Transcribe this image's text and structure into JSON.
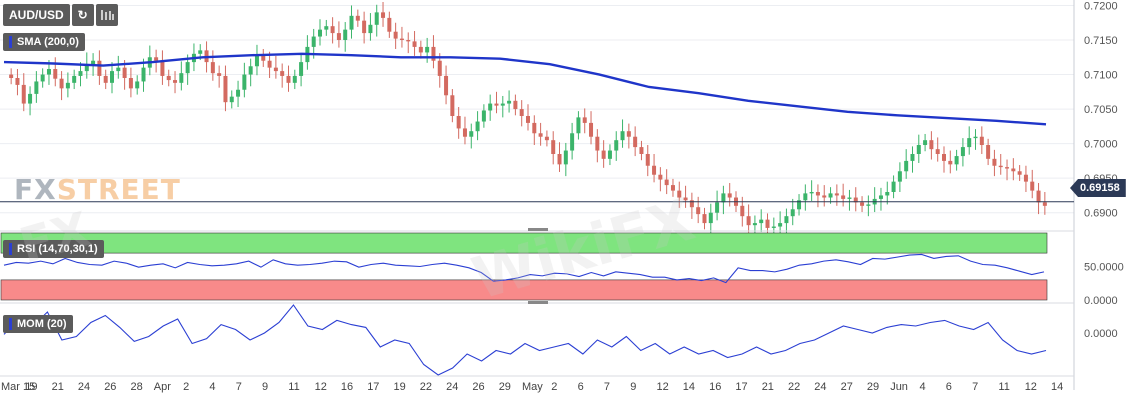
{
  "toolbar": {
    "symbol": "AUD/USD",
    "refresh_icon": "refresh-icon",
    "chart_icon": "candles-icon"
  },
  "sma_label": "SMA (200,0)",
  "rsi_label": "RSI (14,70,30,1)",
  "mom_label": "MOM (20)",
  "logo": {
    "fx": "FX",
    "street": "STREET"
  },
  "watermark": "WikiFX",
  "current_price": "0.69158",
  "colors": {
    "up": "#3bb46a",
    "down": "#d36a60",
    "sma": "#1f35c9",
    "rsi": "#2b3fd3",
    "overbought": "#7fe47f",
    "oversold": "#f88a8a",
    "tag": "#2b3956"
  },
  "chart_data": {
    "type": "candlestick",
    "y_range": [
      0.6875,
      0.7205
    ],
    "yticks": [
      "0.7200",
      "0.7150",
      "0.7100",
      "0.7050",
      "0.7000",
      "0.6950",
      "0.6900"
    ],
    "rsi_ticks": [
      "50.0000",
      "0.0000"
    ],
    "mom_ticks": [
      "0.0000"
    ],
    "x_labels": [
      "Mar 15",
      "19",
      "21",
      "24",
      "26",
      "28",
      "Apr",
      "2",
      "4",
      "7",
      "9",
      "11",
      "12",
      "16",
      "17",
      "19",
      "22",
      "24",
      "26",
      "29",
      "May",
      "2",
      "6",
      "7",
      "9",
      "12",
      "14",
      "16",
      "17",
      "21",
      "22",
      "24",
      "27",
      "29",
      "Jun",
      "4",
      "6",
      "7",
      "11",
      "12",
      "14"
    ],
    "closes": [
      0.7095,
      0.7085,
      0.7058,
      0.7072,
      0.709,
      0.71,
      0.7108,
      0.7094,
      0.708,
      0.7088,
      0.7098,
      0.7105,
      0.7115,
      0.712,
      0.7098,
      0.7088,
      0.7105,
      0.711,
      0.7095,
      0.708,
      0.709,
      0.711,
      0.7125,
      0.712,
      0.7098,
      0.7092,
      0.7088,
      0.7102,
      0.7118,
      0.713,
      0.7135,
      0.7118,
      0.7102,
      0.7098,
      0.706,
      0.7068,
      0.7078,
      0.71,
      0.7112,
      0.7128,
      0.712,
      0.711,
      0.7105,
      0.7098,
      0.7088,
      0.7098,
      0.7118,
      0.714,
      0.7155,
      0.7165,
      0.717,
      0.716,
      0.715,
      0.7165,
      0.7185,
      0.7178,
      0.716,
      0.7172,
      0.719,
      0.7182,
      0.7162,
      0.7152,
      0.715,
      0.7148,
      0.714,
      0.7132,
      0.714,
      0.712,
      0.7098,
      0.707,
      0.704,
      0.7022,
      0.701,
      0.7018,
      0.7032,
      0.7048,
      0.7058,
      0.7055,
      0.7058,
      0.7062,
      0.705,
      0.704,
      0.703,
      0.7015,
      0.701,
      0.7005,
      0.6985,
      0.697,
      0.699,
      0.7015,
      0.7038,
      0.703,
      0.701,
      0.699,
      0.6978,
      0.699,
      0.7005,
      0.7018,
      0.701,
      0.6995,
      0.6985,
      0.6968,
      0.6955,
      0.6948,
      0.694,
      0.6932,
      0.6922,
      0.6918,
      0.6908,
      0.6898,
      0.6885,
      0.69,
      0.6915,
      0.6928,
      0.6922,
      0.691,
      0.6895,
      0.6882,
      0.6885,
      0.689,
      0.6878,
      0.688,
      0.6885,
      0.6895,
      0.6905,
      0.6918,
      0.6928,
      0.693,
      0.6925,
      0.6922,
      0.6928,
      0.6925,
      0.692,
      0.6922,
      0.6915,
      0.691,
      0.6912,
      0.692,
      0.6925,
      0.693,
      0.6945,
      0.696,
      0.6975,
      0.6985,
      0.6998,
      0.7005,
      0.6992,
      0.6985,
      0.6975,
      0.697,
      0.6982,
      0.6995,
      0.7008,
      0.701,
      0.6998,
      0.6978,
      0.6968,
      0.6966,
      0.6964,
      0.696,
      0.6955,
      0.6945,
      0.6932,
      0.6915,
      0.691
    ],
    "sma": [
      0.7118,
      0.7116,
      0.7113,
      0.7118,
      0.7125,
      0.7128,
      0.713,
      0.7128,
      0.7125,
      0.7125,
      0.7123,
      0.7115,
      0.71,
      0.7082,
      0.7073,
      0.7062,
      0.7054,
      0.7046,
      0.7041,
      0.7037,
      0.7033,
      0.7028
    ],
    "rsi": [
      52,
      56,
      55,
      58,
      54,
      62,
      56,
      53,
      52,
      58,
      55,
      49,
      52,
      54,
      48,
      56,
      53,
      51,
      52,
      54,
      58,
      49,
      60,
      54,
      52,
      53,
      55,
      58,
      57,
      49,
      53,
      55,
      52,
      51,
      50,
      53,
      55,
      52,
      48,
      41,
      28,
      30,
      33,
      38,
      36,
      40,
      39,
      35,
      41,
      36,
      42,
      40,
      38,
      34,
      34,
      30,
      32,
      29,
      33,
      26,
      48,
      44,
      44,
      42,
      46,
      52,
      54,
      58,
      60,
      57,
      53,
      62,
      61,
      64,
      67,
      68,
      62,
      65,
      66,
      58,
      53,
      52,
      48,
      43,
      38,
      42
    ],
    "mom": [
      -0.0002,
      0.002,
      0.001,
      0.003,
      -0.001,
      -0.0005,
      0.0015,
      0.0025,
      0.0008,
      -0.0012,
      -0.0005,
      0.001,
      0.002,
      -0.0015,
      -0.0008,
      0.0012,
      0.0005,
      -0.001,
      0.0,
      0.0015,
      0.004,
      0.001,
      0.0005,
      0.0018,
      0.0012,
      0.0008,
      -0.002,
      -0.001,
      -0.0015,
      -0.0045,
      -0.006,
      -0.005,
      -0.003,
      -0.004,
      -0.0025,
      -0.003,
      -0.0015,
      -0.0025,
      -0.002,
      -0.0015,
      -0.003,
      -0.001,
      -0.002,
      -0.0005,
      -0.0025,
      -0.0015,
      -0.003,
      -0.002,
      -0.003,
      -0.0025,
      -0.0035,
      -0.003,
      -0.002,
      -0.003,
      -0.0025,
      -0.0015,
      -0.001,
      0.0,
      0.001,
      0.0005,
      0.0,
      0.0008,
      0.0012,
      0.001,
      0.0015,
      0.0018,
      0.001,
      0.0005,
      0.0015,
      -0.001,
      -0.0025,
      -0.003,
      -0.0025
    ],
    "rsi_overbought": 70,
    "rsi_oversold": 30
  }
}
